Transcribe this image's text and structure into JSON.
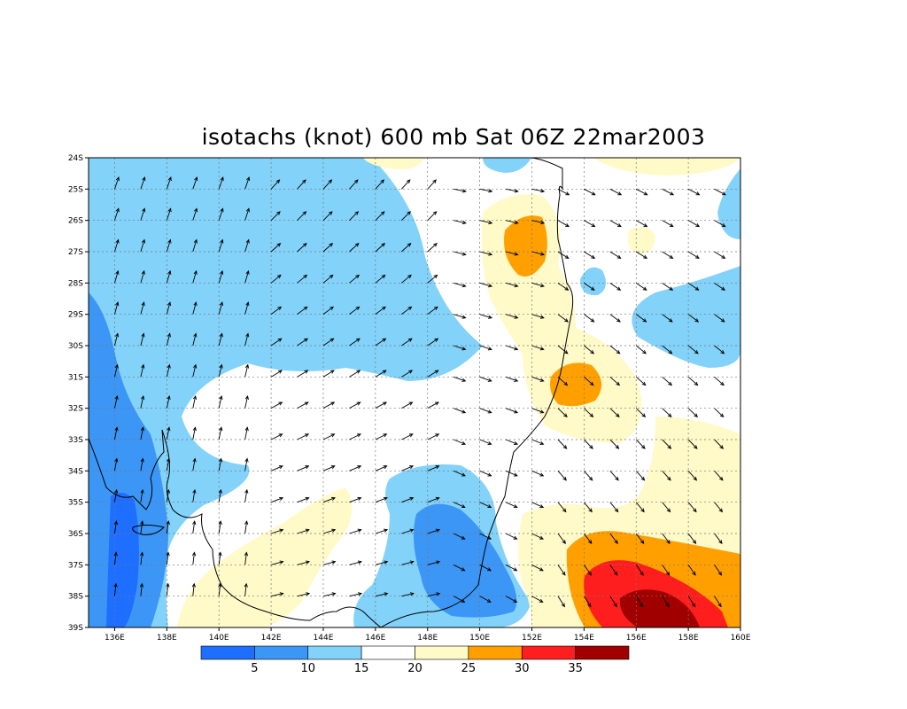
{
  "title": "isotachs (knot) 600 mb Sat 06Z 22mar2003",
  "map": {
    "lon_labels": [
      "136E",
      "138E",
      "140E",
      "142E",
      "144E",
      "146E",
      "148E",
      "150E",
      "152E",
      "154E",
      "156E",
      "158E",
      "160E"
    ],
    "lat_labels": [
      "24S",
      "25S",
      "26S",
      "27S",
      "28S",
      "29S",
      "30S",
      "31S",
      "32S",
      "33S",
      "34S",
      "35S",
      "36S",
      "37S",
      "38S",
      "39S"
    ]
  },
  "colorbar": {
    "colors": [
      "#1e6eff",
      "#3c96f5",
      "#82d2fa",
      "#ffffff",
      "#fffac8",
      "#ffa000",
      "#ff1e1e",
      "#a00000"
    ],
    "labels": [
      "5",
      "10",
      "15",
      "20",
      "25",
      "30",
      "35"
    ]
  }
}
